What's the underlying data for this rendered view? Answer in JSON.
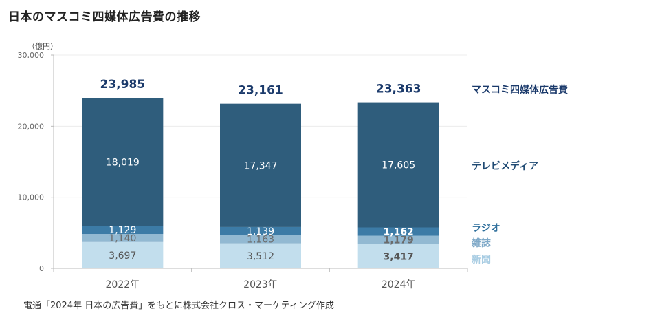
{
  "title": "日本のマスコミ四媒体広告費の推移",
  "unit": "（億円）",
  "source": "電通「2024年 日本の広告費」をもとに株式会社クロス・マーケティング作成",
  "chart_data": {
    "type": "bar",
    "stacked": true,
    "categories": [
      "2022年",
      "2023年",
      "2024年"
    ],
    "y_ticks": [
      "0",
      "10,000",
      "20,000",
      "30,000"
    ],
    "ylim": [
      0,
      30000
    ],
    "totals": [
      {
        "value": 23985,
        "label": "23,985"
      },
      {
        "value": 23161,
        "label": "23,161"
      },
      {
        "value": 23363,
        "label": "23,363"
      }
    ],
    "total_legend": "マスコミ四媒体広告費",
    "series": [
      {
        "name": "新聞",
        "color": "#c2deed",
        "text_color": "#555555",
        "values": [
          3697,
          3512,
          3417
        ],
        "labels": [
          "3,697",
          "3,512",
          "3,417"
        ],
        "bold": [
          false,
          false,
          true
        ]
      },
      {
        "name": "雑誌",
        "color": "#92b9d2",
        "text_color": "#6b6b6b",
        "values": [
          1140,
          1163,
          1179
        ],
        "labels": [
          "1,140",
          "1,163",
          "1,179"
        ],
        "bold": [
          false,
          false,
          true
        ]
      },
      {
        "name": "ラジオ",
        "color": "#3c7ba6",
        "text_color": "#ffffff",
        "values": [
          1129,
          1139,
          1162
        ],
        "labels": [
          "1,129",
          "1,139",
          "1,162"
        ],
        "bold": [
          false,
          false,
          true
        ]
      },
      {
        "name": "テレビメディア",
        "color": "#2f5d7c",
        "text_color": "#ffffff",
        "values": [
          18019,
          17347,
          17605
        ],
        "labels": [
          "18,019",
          "17,347",
          "17,605"
        ],
        "bold": [
          false,
          false,
          false
        ]
      }
    ],
    "legend_colors": {
      "マスコミ四媒体広告費": "#1b3a6b",
      "テレビメディア": "#1f4a73",
      "ラジオ": "#2f6f9c",
      "雑誌": "#7fa9c8",
      "新聞": "#a9cde3"
    }
  }
}
